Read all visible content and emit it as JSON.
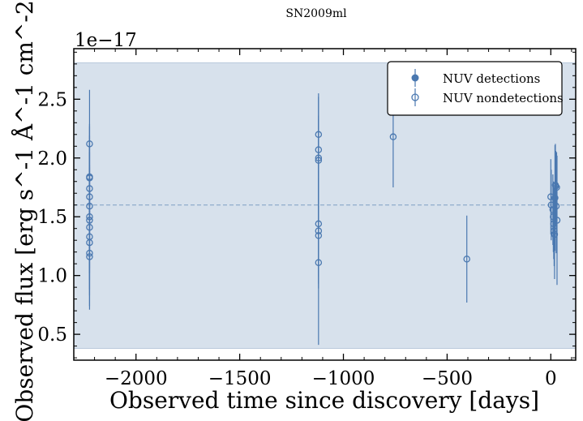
{
  "chart_data": {
    "type": "scatter",
    "title": "SN2009ml",
    "xlabel": "Observed time since discovery [days]",
    "ylabel": "Observed flux [erg s^-1 Å^-1 cm^-2]",
    "y_scale_label": "1e−17",
    "xlim": [
      -2300,
      120
    ],
    "ylim": [
      0.28,
      2.93
    ],
    "x_ticks": [
      -2000,
      -1500,
      -1000,
      -500,
      0
    ],
    "x_tick_labels": [
      "−2000",
      "−1500",
      "−1000",
      "−500",
      "0"
    ],
    "y_ticks": [
      0.5,
      1.0,
      1.5,
      2.0,
      2.5
    ],
    "y_tick_labels": [
      "0.5",
      "1.0",
      "1.5",
      "2.0",
      "2.5"
    ],
    "grid": false,
    "legend_position": "top-right",
    "reference_line": 1.6,
    "reference_band": [
      0.38,
      2.81
    ],
    "colors": {
      "series": "#4a78b0",
      "band": "#d7e1ec",
      "band_edge": "#b9c9db",
      "ref_line": "#7f9fc4"
    },
    "series": [
      {
        "name": "NUV detections",
        "marker": "filled",
        "points": []
      },
      {
        "name": "NUV nondetections",
        "marker": "open",
        "points": [
          {
            "x": -2224,
            "y": 2.12,
            "err": 0.46
          },
          {
            "x": -2224,
            "y": 1.84,
            "err": 0.45
          },
          {
            "x": -2224,
            "y": 1.83,
            "err": 0.44
          },
          {
            "x": -2224,
            "y": 1.74,
            "err": 0.45
          },
          {
            "x": -2224,
            "y": 1.67,
            "err": 0.45
          },
          {
            "x": -2224,
            "y": 1.59,
            "err": 0.46
          },
          {
            "x": -2224,
            "y": 1.5,
            "err": 0.44
          },
          {
            "x": -2224,
            "y": 1.47,
            "err": 0.45
          },
          {
            "x": -2224,
            "y": 1.41,
            "err": 0.45
          },
          {
            "x": -2224,
            "y": 1.33,
            "err": 0.45
          },
          {
            "x": -2224,
            "y": 1.28,
            "err": 0.45
          },
          {
            "x": -2224,
            "y": 1.19,
            "err": 0.45
          },
          {
            "x": -2224,
            "y": 1.16,
            "err": 0.45
          },
          {
            "x": -1120,
            "y": 2.2,
            "err": 0.35
          },
          {
            "x": -1120,
            "y": 2.07,
            "err": 0.45
          },
          {
            "x": -1120,
            "y": 2.0,
            "err": 0.36
          },
          {
            "x": -1120,
            "y": 1.98,
            "err": 0.35
          },
          {
            "x": -1120,
            "y": 1.44,
            "err": 0.45
          },
          {
            "x": -1120,
            "y": 1.38,
            "err": 0.45
          },
          {
            "x": -1120,
            "y": 1.34,
            "err": 0.45
          },
          {
            "x": -1120,
            "y": 1.11,
            "err": 0.7
          },
          {
            "x": -760,
            "y": 2.18,
            "err": 0.43
          },
          {
            "x": -405,
            "y": 1.14,
            "err": 0.37
          },
          {
            "x": 0,
            "y": 1.67,
            "err": 0.32
          },
          {
            "x": 2,
            "y": 1.6,
            "err": 0.3
          },
          {
            "x": 10,
            "y": 1.56,
            "err": 0.3
          },
          {
            "x": 12,
            "y": 1.5,
            "err": 0.3
          },
          {
            "x": 14,
            "y": 1.44,
            "err": 0.3
          },
          {
            "x": 16,
            "y": 1.38,
            "err": 0.3
          },
          {
            "x": 18,
            "y": 1.35,
            "err": 0.38
          },
          {
            "x": 20,
            "y": 1.66,
            "err": 0.45
          },
          {
            "x": 22,
            "y": 1.77,
            "err": 0.35
          },
          {
            "x": 24,
            "y": 1.76,
            "err": 0.3
          },
          {
            "x": 26,
            "y": 1.59,
            "err": 0.4
          },
          {
            "x": 28,
            "y": 1.75,
            "err": 0.3
          },
          {
            "x": 30,
            "y": 1.47,
            "err": 0.55
          }
        ]
      }
    ]
  }
}
